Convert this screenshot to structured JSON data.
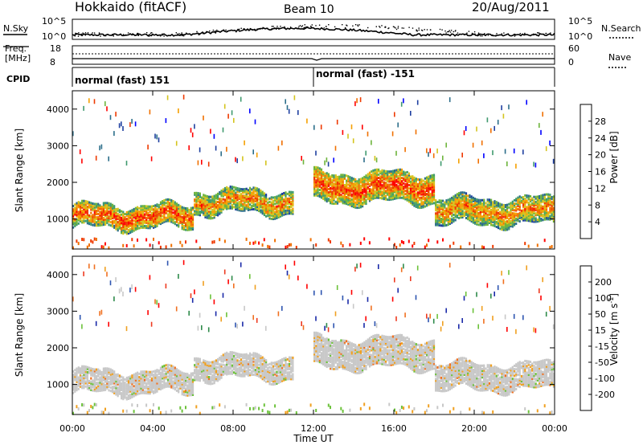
{
  "header": {
    "station": "Hokkaido (fitACF)",
    "beam": "Beam 10",
    "date": "20/Aug/2011"
  },
  "strip_labels": {
    "nsky": "N.Sky",
    "nsearch": "N.Search",
    "freq_line1": "Freq.",
    "freq_line2": "[MHz]",
    "nave": "Nave",
    "cpid": "CPID",
    "noise_ticks_left": [
      "10^5",
      "10^0"
    ],
    "noise_ticks_right": [
      "10^5",
      "10^0"
    ],
    "freq_ticks": [
      "18",
      "8"
    ],
    "nave_ticks": [
      "60",
      "0"
    ]
  },
  "cpid_segments": [
    {
      "label": "normal (fast) 151",
      "start_hour": 0
    },
    {
      "label": "normal (fast) -151",
      "start_hour": 12
    }
  ],
  "chart_data": [
    {
      "type": "heatmap",
      "title": "Power",
      "ylabel": "Slant Range [km]",
      "xlabel": "Time UT",
      "xlim": [
        0,
        24
      ],
      "ylim": [
        180,
        4500
      ],
      "x_ticks": [
        "00:00",
        "04:00",
        "08:00",
        "12:00",
        "16:00",
        "20:00",
        "00:00"
      ],
      "y_ticks": [
        1000,
        2000,
        3000,
        4000
      ],
      "colorbar_label": "Power [dB]",
      "colorbar_ticks": [
        "4",
        "8",
        "12",
        "16",
        "20",
        "24",
        "28"
      ],
      "colorbar_colors": [
        "#0000ff",
        "#1e3fa0",
        "#2c6e8a",
        "#3f9a6e",
        "#6db43c",
        "#d4c41e",
        "#f5a000",
        "#f07000",
        "#ee3a00",
        "#ff0000"
      ],
      "dominant_echo_bands": [
        {
          "from_hour": 0,
          "to_hour": 6,
          "range_km": [
            800,
            1400
          ],
          "power_db": 28
        },
        {
          "from_hour": 6,
          "to_hour": 11,
          "range_km": [
            1200,
            1800
          ],
          "power_db": 24
        },
        {
          "from_hour": 12,
          "to_hour": 18,
          "range_km": [
            1500,
            2300
          ],
          "power_db": 28
        },
        {
          "from_hour": 18,
          "to_hour": 24,
          "range_km": [
            900,
            1600
          ],
          "power_db": 24
        }
      ]
    },
    {
      "type": "heatmap",
      "title": "Velocity",
      "ylabel": "Slant Range [km]",
      "xlabel": "Time UT",
      "xlim": [
        0,
        24
      ],
      "ylim": [
        180,
        4500
      ],
      "x_ticks": [
        "00:00",
        "04:00",
        "08:00",
        "12:00",
        "16:00",
        "20:00",
        "00:00"
      ],
      "y_ticks": [
        1000,
        2000,
        3000,
        4000
      ],
      "colorbar_label": "Velocity [m s^-1]",
      "colorbar_ticks": [
        "200",
        "100",
        "50",
        "15",
        "-15",
        "-50",
        "-100",
        "-200"
      ],
      "colorbar_colors": [
        "#1a2aa8",
        "#2e55b0",
        "#2e8a4a",
        "#6cc23a",
        "#c8c8c8",
        "#f0a020",
        "#f07020",
        "#ee3a20",
        "#ff0000"
      ],
      "dominant_echo_bands": [
        {
          "from_hour": 0,
          "to_hour": 6,
          "range_km": [
            900,
            1500
          ],
          "velocity_ms": 0
        },
        {
          "from_hour": 6,
          "to_hour": 12,
          "range_km": [
            1200,
            1900
          ],
          "velocity_ms": 0
        },
        {
          "from_hour": 12,
          "to_hour": 18,
          "range_km": [
            1600,
            2500
          ],
          "velocity_ms": 0
        },
        {
          "from_hour": 18,
          "to_hour": 24,
          "range_km": [
            1000,
            1700
          ],
          "velocity_ms": 0
        }
      ]
    }
  ]
}
